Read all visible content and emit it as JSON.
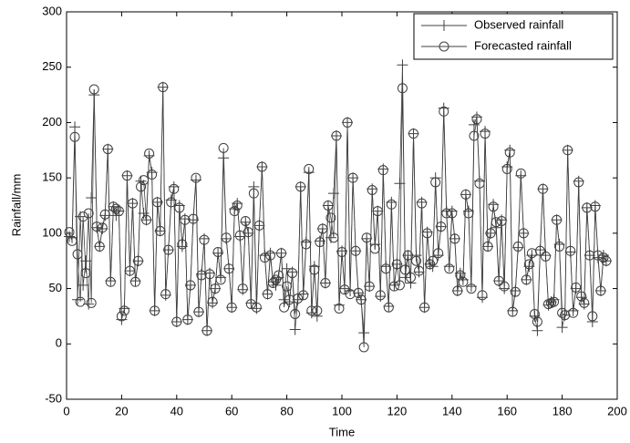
{
  "chart_data": {
    "type": "line",
    "x_label": "Time",
    "y_label": "Rainfall/mm",
    "xlim": [
      0,
      200
    ],
    "ylim": [
      -50,
      300
    ],
    "xticks": [
      0,
      20,
      40,
      60,
      80,
      100,
      120,
      140,
      160,
      180,
      200
    ],
    "yticks": [
      -50,
      0,
      50,
      100,
      150,
      200,
      250,
      300
    ],
    "grid": false,
    "legend": "upper right",
    "x": [
      1,
      2,
      3,
      4,
      5,
      6,
      7,
      8,
      9,
      10,
      11,
      12,
      13,
      14,
      15,
      16,
      17,
      18,
      19,
      20,
      21,
      22,
      23,
      24,
      25,
      26,
      27,
      28,
      29,
      30,
      31,
      32,
      33,
      34,
      35,
      36,
      37,
      38,
      39,
      40,
      41,
      42,
      43,
      44,
      45,
      46,
      47,
      48,
      49,
      50,
      51,
      52,
      53,
      54,
      55,
      56,
      57,
      58,
      59,
      60,
      61,
      62,
      63,
      64,
      65,
      66,
      67,
      68,
      69,
      70,
      71,
      72,
      73,
      74,
      75,
      76,
      77,
      78,
      79,
      80,
      81,
      82,
      83,
      84,
      85,
      86,
      87,
      88,
      89,
      90,
      91,
      92,
      93,
      94,
      95,
      96,
      97,
      98,
      99,
      100,
      101,
      102,
      103,
      104,
      105,
      106,
      107,
      108,
      109,
      110,
      111,
      112,
      113,
      114,
      115,
      116,
      117,
      118,
      119,
      120,
      121,
      122,
      123,
      124,
      125,
      126,
      127,
      128,
      129,
      130,
      131,
      132,
      133,
      134,
      135,
      136,
      137,
      138,
      139,
      140,
      141,
      142,
      143,
      144,
      145,
      146,
      147,
      148,
      149,
      150,
      151,
      152,
      153,
      154,
      155,
      156,
      157,
      158,
      159,
      160,
      161,
      162,
      163,
      164,
      165,
      166,
      167,
      168,
      169,
      170,
      171,
      172,
      173,
      174,
      175,
      176,
      177,
      178,
      179,
      180,
      181,
      182,
      183,
      184,
      185,
      186,
      187,
      188,
      189,
      190,
      191,
      192,
      193,
      194,
      195,
      196
    ],
    "series": [
      {
        "name": "Observed rainfall",
        "color": "#404040",
        "marker": "plus",
        "values": [
          97,
          96,
          196,
          40,
          115,
          53,
          75,
          36,
          132,
          225,
          105,
          88,
          104,
          116,
          176,
          57,
          124,
          116,
          120,
          22,
          32,
          152,
          66,
          127,
          57,
          75,
          147,
          118,
          112,
          170,
          155,
          30,
          128,
          102,
          232,
          44,
          85,
          130,
          142,
          20,
          125,
          88,
          113,
          22,
          53,
          112,
          148,
          29,
          63,
          95,
          12,
          64,
          37,
          50,
          82,
          60,
          168,
          95,
          68,
          33,
          122,
          127,
          97,
          49,
          110,
          100,
          37,
          142,
          32,
          107,
          160,
          80,
          45,
          82,
          56,
          53,
          60,
          82,
          40,
          68,
          38,
          65,
          13,
          40,
          142,
          45,
          92,
          155,
          28,
          70,
          25,
          93,
          104,
          55,
          125,
          96,
          136,
          188,
          35,
          84,
          50,
          200,
          48,
          150,
          84,
          46,
          40,
          10,
          95,
          52,
          140,
          90,
          120,
          43,
          158,
          70,
          34,
          128,
          53,
          72,
          145,
          252,
          60,
          80,
          55,
          190,
          80,
          65,
          128,
          33,
          101,
          72,
          70,
          150,
          80,
          106,
          213,
          120,
          70,
          120,
          95,
          48,
          64,
          58,
          135,
          120,
          52,
          198,
          205,
          147,
          42,
          192,
          88,
          100,
          126,
          105,
          57,
          112,
          50,
          160,
          175,
          30,
          48,
          87,
          152,
          100,
          58,
          70,
          80,
          25,
          12,
          85,
          140,
          80,
          35,
          38,
          40,
          112,
          90,
          15,
          26,
          175,
          83,
          30,
          50,
          147,
          42,
          36,
          123,
          80,
          20,
          125,
          78,
          48,
          80,
          75
        ]
      },
      {
        "name": "Forecasted rainfall",
        "color": "#404040",
        "marker": "circle",
        "values": [
          101,
          93,
          187,
          81,
          38,
          115,
          64,
          118,
          37,
          230,
          106,
          88,
          105,
          117,
          176,
          56,
          124,
          122,
          120,
          25,
          30,
          152,
          66,
          127,
          56,
          75,
          142,
          148,
          112,
          172,
          153,
          30,
          128,
          102,
          232,
          45,
          85,
          128,
          140,
          20,
          123,
          90,
          112,
          22,
          53,
          113,
          150,
          29,
          62,
          94,
          12,
          63,
          38,
          50,
          83,
          58,
          177,
          96,
          68,
          33,
          120,
          125,
          98,
          50,
          111,
          101,
          36,
          136,
          33,
          107,
          160,
          78,
          45,
          80,
          55,
          58,
          62,
          82,
          33,
          52,
          40,
          64,
          27,
          41,
          142,
          44,
          90,
          158,
          30,
          67,
          30,
          92,
          104,
          55,
          125,
          114,
          96,
          188,
          32,
          83,
          49,
          200,
          45,
          150,
          84,
          46,
          40,
          -3,
          96,
          52,
          139,
          86,
          120,
          44,
          157,
          68,
          33,
          126,
          52,
          72,
          53,
          231,
          67,
          80,
          60,
          190,
          75,
          66,
          127,
          33,
          100,
          72,
          75,
          146,
          82,
          106,
          210,
          118,
          68,
          118,
          95,
          48,
          62,
          56,
          135,
          118,
          50,
          188,
          203,
          145,
          44,
          190,
          88,
          100,
          124,
          110,
          57,
          111,
          52,
          158,
          173,
          29,
          47,
          88,
          154,
          100,
          58,
          72,
          82,
          27,
          20,
          84,
          140,
          79,
          36,
          37,
          38,
          112,
          88,
          28,
          26,
          175,
          84,
          28,
          51,
          146,
          43,
          37,
          123,
          80,
          25,
          124,
          80,
          48,
          78,
          75
        ]
      }
    ]
  }
}
